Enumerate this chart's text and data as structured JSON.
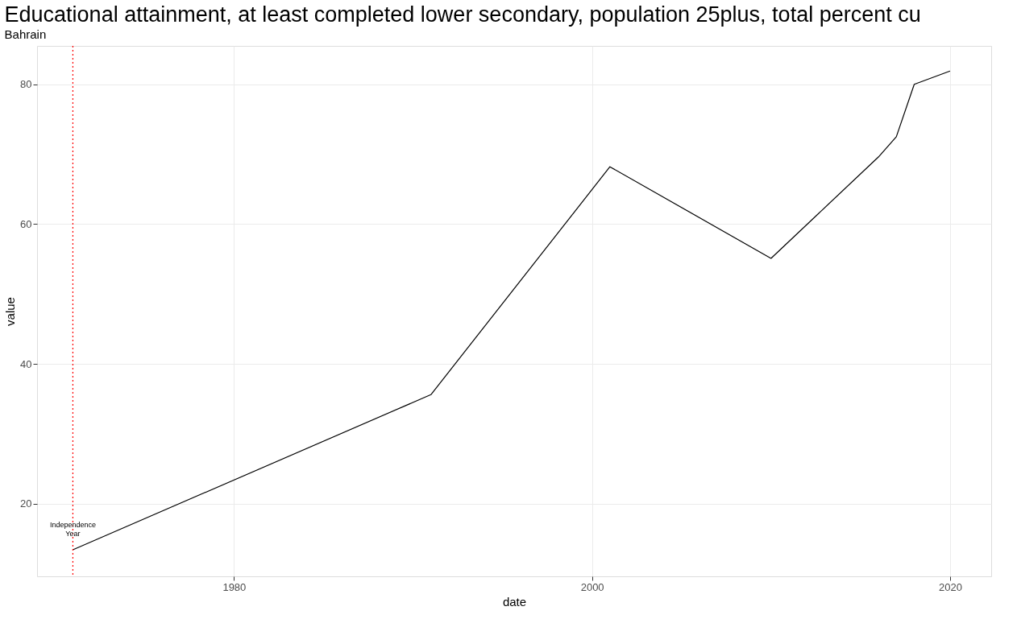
{
  "chart_data": {
    "type": "line",
    "title": "Educational attainment, at least completed lower secondary, population 25plus, total percent cu",
    "subtitle": "Bahrain",
    "xlabel": "date",
    "ylabel": "value",
    "x": [
      1971,
      1991,
      2001,
      2010,
      2016,
      2017,
      2018,
      2020
    ],
    "series": [
      {
        "color": "#000000",
        "values": [
          13.4,
          35.6,
          68.2,
          55.1,
          69.6,
          72.5,
          80.0,
          81.9
        ]
      }
    ],
    "xlim": [
      1969,
      2022.3
    ],
    "ylim": [
      9.6,
      85.5
    ],
    "xticks": [
      1980,
      2000,
      2020
    ],
    "yticks": [
      20,
      40,
      60,
      80
    ],
    "ref_lines": [
      {
        "axis": "x",
        "value": 1971,
        "label": "Independence\nYear",
        "color": "#ff0000",
        "line_style": "dotted"
      }
    ],
    "grid": true,
    "marker": "none",
    "line_style": "solid"
  }
}
